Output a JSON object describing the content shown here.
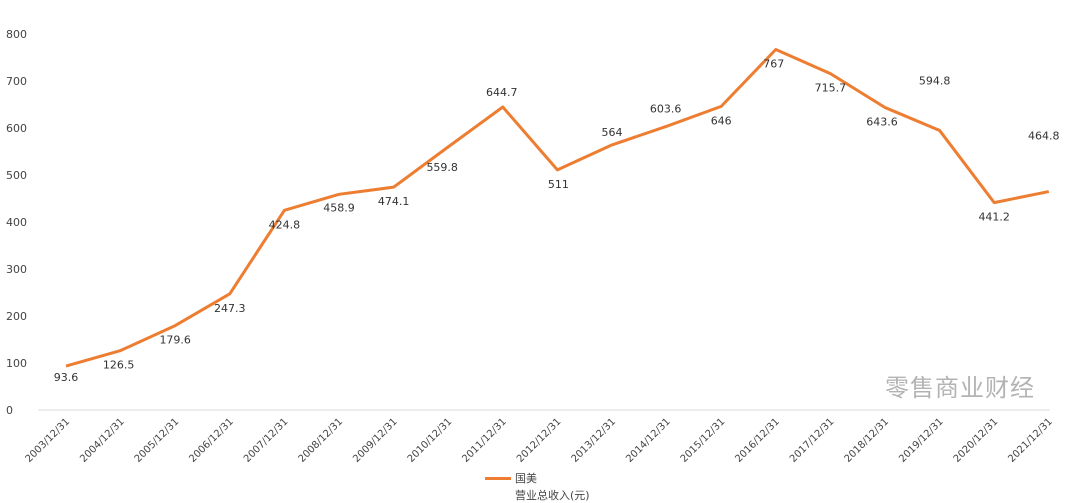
{
  "chart_data": {
    "type": "line",
    "categories": [
      "2003/12/31",
      "2004/12/31",
      "2005/12/31",
      "2006/12/31",
      "2007/12/31",
      "2008/12/31",
      "2009/12/31",
      "2010/12/31",
      "2011/12/31",
      "2012/12/31",
      "2013/12/31",
      "2014/12/31",
      "2015/12/31",
      "2016/12/31",
      "2017/12/31",
      "2018/12/31",
      "2019/12/31",
      "2020/12/31",
      "2021/12/31"
    ],
    "series": [
      {
        "name": "国美",
        "color": "#ED7D31",
        "values": [
          93.6,
          126.5,
          179.6,
          247.3,
          424.8,
          458.9,
          474.1,
          559.8,
          644.7,
          511,
          564,
          603.6,
          646,
          767,
          715.7,
          643.6,
          594.8,
          441.2,
          464.8
        ],
        "labels": [
          "93.6",
          "126.5",
          "179.6",
          "247.3",
          "424.8",
          "458.9",
          "474.1",
          "559.8",
          "644.7",
          "511",
          "564",
          "603.6",
          "646",
          "767",
          "715.7",
          "643.6",
          "594.8",
          "441.2",
          "464.8"
        ]
      }
    ],
    "legend_subtitle": "营业总收入(元)",
    "ylim": [
      0,
      800
    ],
    "yticks": [
      0,
      100,
      200,
      300,
      400,
      500,
      600,
      700,
      800
    ],
    "grid": false,
    "legend_position": "bottom"
  },
  "watermark": "零售商业财经"
}
